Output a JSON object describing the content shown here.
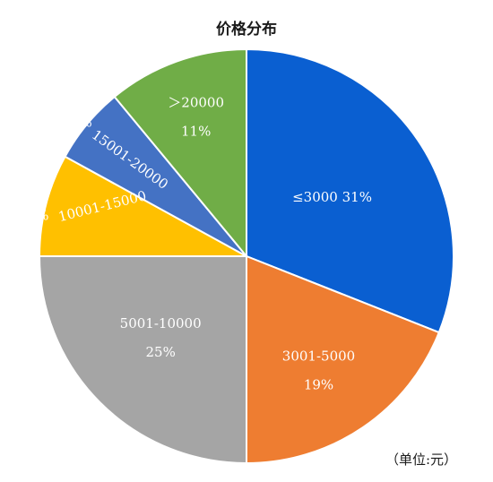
{
  "chart_data": {
    "type": "pie",
    "title": "价格分布",
    "unit_note": "（单位:元）",
    "start_angle": "12 o'clock",
    "direction": "clockwise",
    "slices": [
      {
        "label": "≤3000",
        "percent_label": "31%",
        "value": 31,
        "color": "#0a5fd1"
      },
      {
        "label": "3001-5000",
        "percent_label": "19%",
        "value": 19,
        "color": "#ee7d31"
      },
      {
        "label": "5001-10000",
        "percent_label": "25%",
        "value": 25,
        "color": "#a5a5a5"
      },
      {
        "label": "10001-15000",
        "percent_label": "8%",
        "value": 8,
        "color": "#ffc000"
      },
      {
        "label": "15001-20000",
        "percent_label": "6%",
        "value": 6,
        "color": "#4472c4"
      },
      {
        "label": "＞20000",
        "percent_label": "11%",
        "value": 11,
        "color": "#70ad47"
      }
    ]
  }
}
